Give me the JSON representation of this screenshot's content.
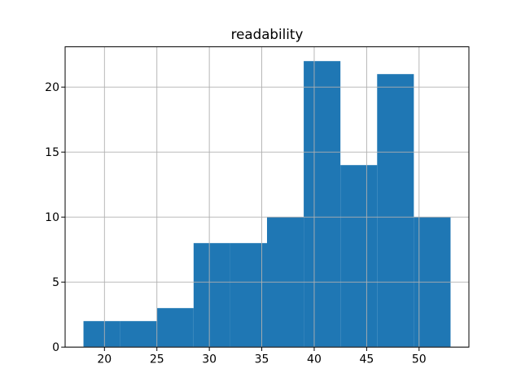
{
  "chart_data": {
    "type": "bar",
    "subtype": "histogram",
    "title": "readability",
    "xlabel": "",
    "ylabel": "",
    "bin_edges": [
      18,
      21.5,
      25,
      28.5,
      32,
      35.5,
      39,
      42.5,
      46,
      49.5,
      53
    ],
    "counts": [
      2,
      2,
      3,
      8,
      8,
      10,
      22,
      14,
      21,
      10
    ],
    "xticks": [
      20,
      25,
      30,
      35,
      40,
      45,
      50
    ],
    "yticks": [
      0,
      5,
      10,
      15,
      20
    ],
    "xlim": [
      16.25,
      54.75
    ],
    "ylim": [
      0,
      23.1
    ],
    "grid": true,
    "grid_over_bars": true,
    "legend": false,
    "bar_color": "#1f77b4",
    "grid_color": "#b0b0b0",
    "spine_color": "#000000",
    "tick_color": "#000000",
    "background_color": "#ffffff"
  }
}
